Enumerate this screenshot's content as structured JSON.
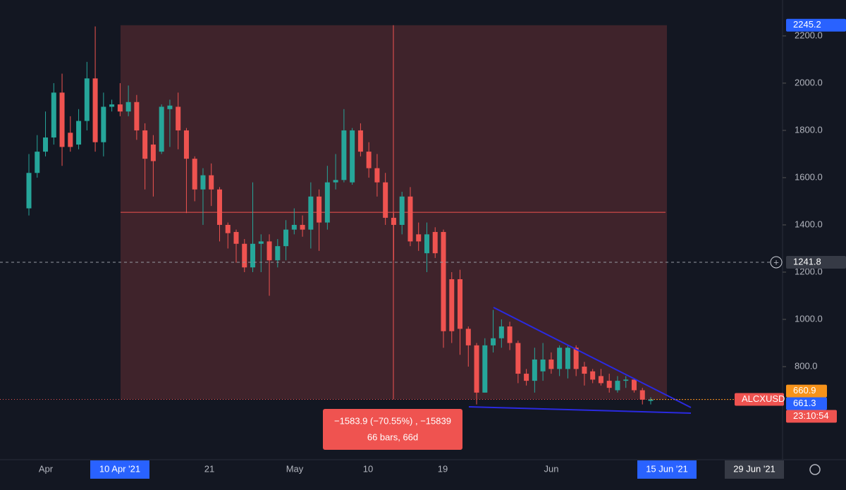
{
  "chart_data": {
    "type": "candlestick",
    "symbol": "ALCXUSD",
    "up_color": "#26a69a",
    "down_color": "#ef5350",
    "ylim": [
      412,
      2352
    ],
    "yticks": [
      {
        "value": 800,
        "label": "800.0"
      },
      {
        "value": 1000,
        "label": "1000.0"
      },
      {
        "value": 1200,
        "label": "1200.0"
      },
      {
        "value": 1400,
        "label": "1400.0"
      },
      {
        "value": 1600,
        "label": "1600.0"
      },
      {
        "value": 1800,
        "label": "1800.0"
      },
      {
        "value": 2000,
        "label": "2000.0"
      },
      {
        "value": 2200,
        "label": "2200.0"
      }
    ],
    "x_labels": [
      "Apr",
      "10 Apr '21",
      "21",
      "May",
      "10",
      "19",
      "Jun",
      "15 Jun '21",
      "29 Jun '21"
    ],
    "high_marker": 2245.2,
    "crosshair_price": 1241.8,
    "bid_price": 660.9,
    "last_price": 661.3,
    "countdown": "23:10:54",
    "measure": {
      "line1": "−1583.9 (−70.55%) , −15839",
      "line2": "66 bars, 66d"
    },
    "candles": [
      {
        "open": 1470,
        "high": 1700,
        "low": 1440,
        "close": 1620
      },
      {
        "open": 1620,
        "high": 1780,
        "low": 1600,
        "close": 1710
      },
      {
        "open": 1710,
        "high": 1880,
        "low": 1690,
        "close": 1770
      },
      {
        "open": 1770,
        "high": 2000,
        "low": 1740,
        "close": 1960
      },
      {
        "open": 1960,
        "high": 2040,
        "low": 1650,
        "close": 1730
      },
      {
        "open": 1790,
        "high": 1860,
        "low": 1710,
        "close": 1730
      },
      {
        "open": 1740,
        "high": 1890,
        "low": 1720,
        "close": 1840
      },
      {
        "open": 1840,
        "high": 2090,
        "low": 1800,
        "close": 2020
      },
      {
        "open": 2020,
        "high": 2240,
        "low": 1710,
        "close": 1750
      },
      {
        "open": 1750,
        "high": 1960,
        "low": 1690,
        "close": 1900
      },
      {
        "open": 1900,
        "high": 1930,
        "low": 1880,
        "close": 1910
      },
      {
        "open": 1910,
        "high": 2000,
        "low": 1860,
        "close": 1880
      },
      {
        "open": 1880,
        "high": 1990,
        "low": 1860,
        "close": 1920
      },
      {
        "open": 1920,
        "high": 1950,
        "low": 1760,
        "close": 1800
      },
      {
        "open": 1800,
        "high": 1830,
        "low": 1550,
        "close": 1680
      },
      {
        "open": 1740,
        "high": 1780,
        "low": 1520,
        "close": 1670
      },
      {
        "open": 1710,
        "high": 1910,
        "low": 1700,
        "close": 1900
      },
      {
        "open": 1890,
        "high": 1930,
        "low": 1730,
        "close": 1905
      },
      {
        "open": 1900,
        "high": 1960,
        "low": 1720,
        "close": 1800
      },
      {
        "open": 1800,
        "high": 1810,
        "low": 1450,
        "close": 1680
      },
      {
        "open": 1680,
        "high": 1690,
        "low": 1500,
        "close": 1550
      },
      {
        "open": 1550,
        "high": 1640,
        "low": 1400,
        "close": 1610
      },
      {
        "open": 1610,
        "high": 1660,
        "low": 1480,
        "close": 1550
      },
      {
        "open": 1550,
        "high": 1560,
        "low": 1330,
        "close": 1400
      },
      {
        "open": 1400,
        "high": 1410,
        "low": 1300,
        "close": 1365
      },
      {
        "open": 1370,
        "high": 1380,
        "low": 1240,
        "close": 1320
      },
      {
        "open": 1320,
        "high": 1340,
        "low": 1200,
        "close": 1220
      },
      {
        "open": 1220,
        "high": 1580,
        "low": 1200,
        "close": 1320
      },
      {
        "open": 1320,
        "high": 1360,
        "low": 1200,
        "close": 1330
      },
      {
        "open": 1330,
        "high": 1360,
        "low": 1100,
        "close": 1250
      },
      {
        "open": 1250,
        "high": 1340,
        "low": 1220,
        "close": 1310
      },
      {
        "open": 1310,
        "high": 1420,
        "low": 1250,
        "close": 1380
      },
      {
        "open": 1380,
        "high": 1470,
        "low": 1360,
        "close": 1400
      },
      {
        "open": 1400,
        "high": 1440,
        "low": 1350,
        "close": 1380
      },
      {
        "open": 1380,
        "high": 1580,
        "low": 1300,
        "close": 1520
      },
      {
        "open": 1520,
        "high": 1550,
        "low": 1290,
        "close": 1410
      },
      {
        "open": 1410,
        "high": 1650,
        "low": 1380,
        "close": 1580
      },
      {
        "open": 1580,
        "high": 1700,
        "low": 1550,
        "close": 1590
      },
      {
        "open": 1590,
        "high": 1890,
        "low": 1580,
        "close": 1800
      },
      {
        "open": 1580,
        "high": 1810,
        "low": 1570,
        "close": 1800
      },
      {
        "open": 1800,
        "high": 1830,
        "low": 1690,
        "close": 1710
      },
      {
        "open": 1710,
        "high": 1750,
        "low": 1600,
        "close": 1640
      },
      {
        "open": 1640,
        "high": 1700,
        "low": 1520,
        "close": 1580
      },
      {
        "open": 1580,
        "high": 1620,
        "low": 1400,
        "close": 1430
      },
      {
        "open": 1430,
        "high": 1450,
        "low": 1250,
        "close": 1400
      },
      {
        "open": 1400,
        "high": 1540,
        "low": 1360,
        "close": 1520
      },
      {
        "open": 1520,
        "high": 1560,
        "low": 1310,
        "close": 1330
      },
      {
        "open": 1360,
        "high": 1410,
        "low": 1290,
        "close": 1330
      },
      {
        "open": 1280,
        "high": 1410,
        "low": 1200,
        "close": 1360
      },
      {
        "open": 1370,
        "high": 1390,
        "low": 1260,
        "close": 1280
      },
      {
        "open": 1370,
        "high": 1380,
        "low": 880,
        "close": 950
      },
      {
        "open": 1170,
        "high": 1200,
        "low": 900,
        "close": 950
      },
      {
        "open": 1170,
        "high": 1210,
        "low": 850,
        "close": 960
      },
      {
        "open": 960,
        "high": 970,
        "low": 800,
        "close": 890
      },
      {
        "open": 890,
        "high": 900,
        "low": 640,
        "close": 690
      },
      {
        "open": 690,
        "high": 920,
        "low": 690,
        "close": 890
      },
      {
        "open": 890,
        "high": 1040,
        "low": 860,
        "close": 920
      },
      {
        "open": 920,
        "high": 1000,
        "low": 880,
        "close": 970
      },
      {
        "open": 970,
        "high": 990,
        "low": 870,
        "close": 900
      },
      {
        "open": 900,
        "high": 910,
        "low": 730,
        "close": 770
      },
      {
        "open": 770,
        "high": 790,
        "low": 720,
        "close": 740
      },
      {
        "open": 740,
        "high": 880,
        "low": 690,
        "close": 830
      },
      {
        "open": 780,
        "high": 900,
        "low": 740,
        "close": 830
      },
      {
        "open": 830,
        "high": 860,
        "low": 770,
        "close": 790
      },
      {
        "open": 790,
        "high": 890,
        "low": 760,
        "close": 880
      },
      {
        "open": 790,
        "high": 890,
        "low": 750,
        "close": 880
      },
      {
        "open": 880,
        "high": 890,
        "low": 760,
        "close": 790
      },
      {
        "open": 800,
        "high": 820,
        "low": 720,
        "close": 770
      },
      {
        "open": 780,
        "high": 790,
        "low": 730,
        "close": 745
      },
      {
        "open": 760,
        "high": 790,
        "low": 720,
        "close": 730
      },
      {
        "open": 740,
        "high": 770,
        "low": 690,
        "close": 710
      },
      {
        "open": 700,
        "high": 760,
        "low": 690,
        "close": 740
      },
      {
        "open": 740,
        "high": 760,
        "low": 710,
        "close": 745
      },
      {
        "open": 745,
        "high": 750,
        "low": 690,
        "close": 700
      },
      {
        "open": 700,
        "high": 710,
        "low": 640,
        "close": 660
      },
      {
        "open": 655,
        "high": 670,
        "low": 640,
        "close": 661
      }
    ]
  }
}
